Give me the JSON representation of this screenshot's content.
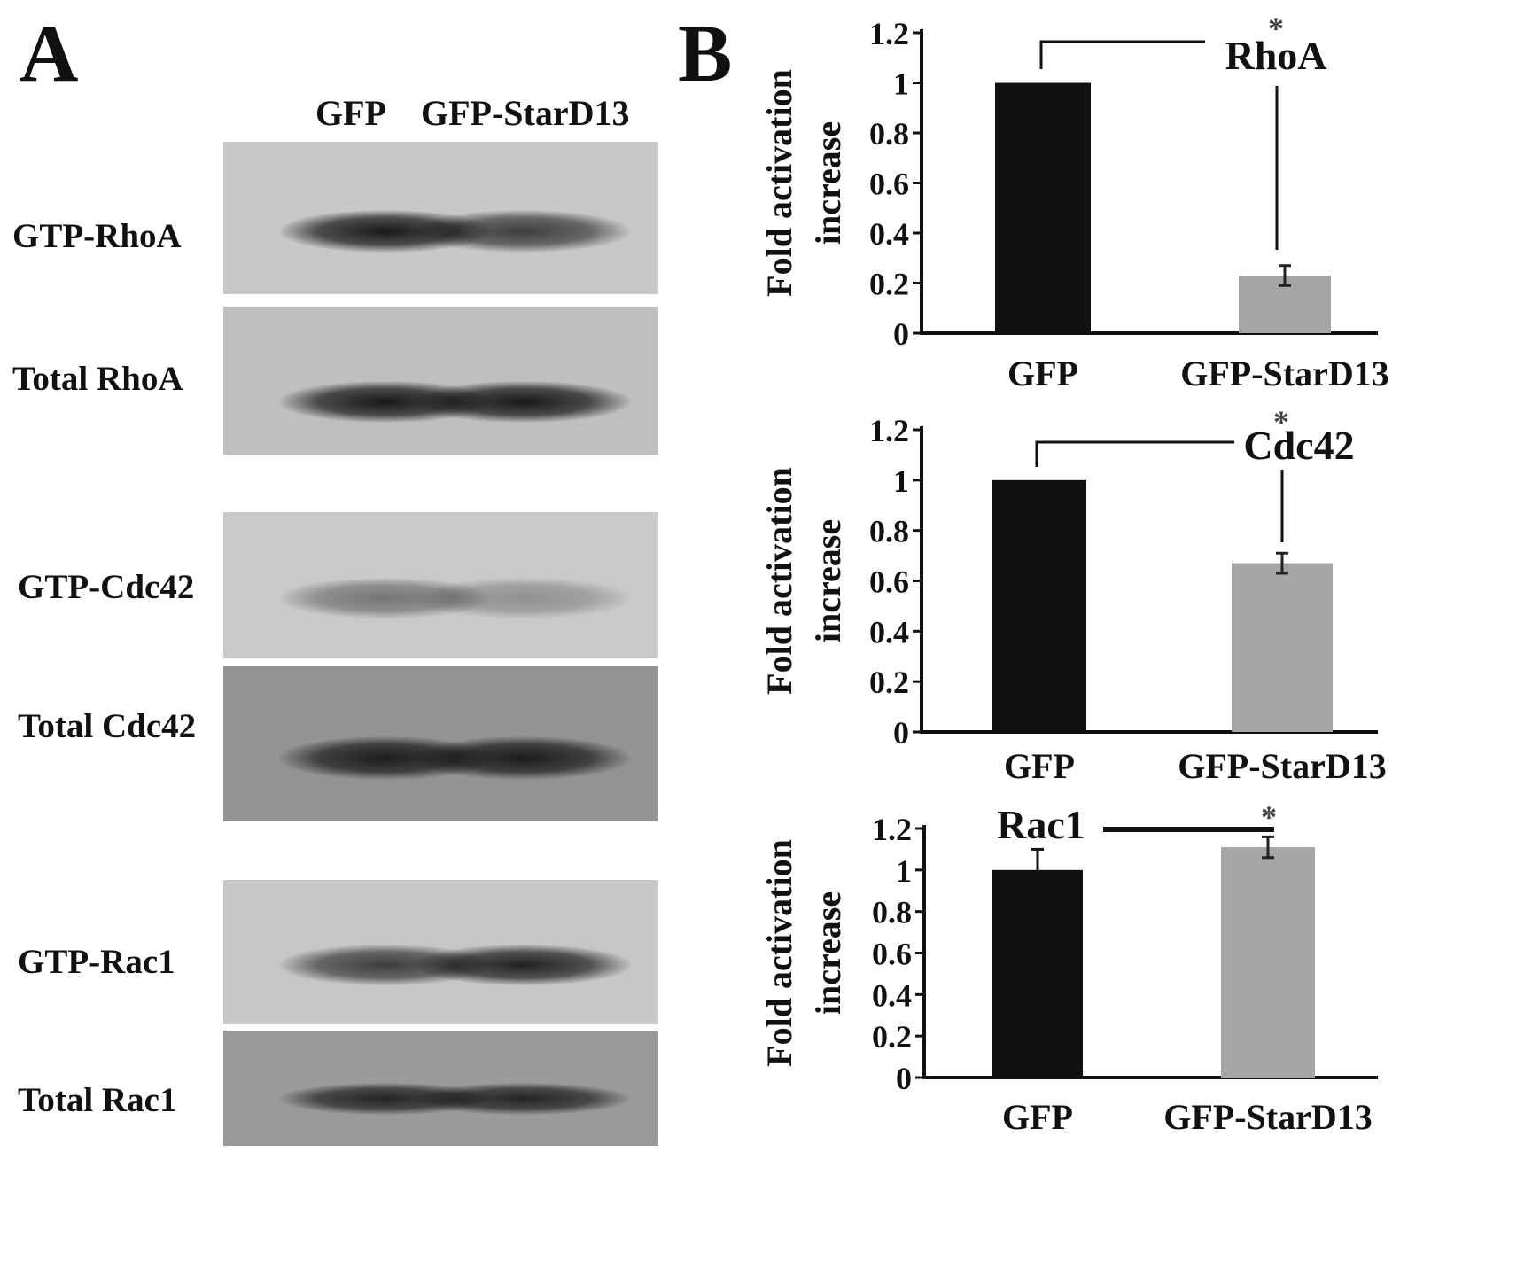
{
  "panel_a": {
    "letter": "A",
    "lanes": [
      "GFP",
      "GFP-StarD13"
    ],
    "rows": [
      {
        "label": "GTP-RhoA",
        "bg": "#c8c8c8",
        "bands": [
          0.95,
          0.75
        ]
      },
      {
        "label": "Total RhoA",
        "bg": "#bfbfbf",
        "bands": [
          0.95,
          0.95
        ]
      },
      {
        "label": "GTP-Cdc42",
        "bg": "#c9c9c9",
        "bands": [
          0.45,
          0.3
        ]
      },
      {
        "label": "Total Cdc42",
        "bg": "#939393",
        "bands": [
          0.9,
          0.9
        ]
      },
      {
        "label": "GTP-Rac1",
        "bg": "#c6c6c6",
        "bands": [
          0.75,
          0.9
        ]
      },
      {
        "label": "Total Rac1",
        "bg": "#9a9a9a",
        "bands": [
          0.85,
          0.85
        ]
      }
    ]
  },
  "panel_b": {
    "letter": "B"
  },
  "chart_data": [
    {
      "type": "bar",
      "name": "RhoA",
      "categories": [
        "GFP",
        "GFP-StarD13"
      ],
      "values": [
        1.0,
        0.23
      ],
      "errors": [
        0,
        0.04
      ],
      "colors": [
        "#111111",
        "#a6a6a6"
      ],
      "ylabel": "Fold activation increase",
      "ylim": [
        0,
        1.2
      ],
      "ticks": [
        "0",
        "0.2",
        "0.4",
        "0.6",
        "0.8",
        "1",
        "1.2"
      ],
      "significance": "*",
      "annotation": "RhoA"
    },
    {
      "type": "bar",
      "name": "Cdc42",
      "categories": [
        "GFP",
        "GFP-StarD13"
      ],
      "values": [
        1.0,
        0.67
      ],
      "errors": [
        0,
        0.04
      ],
      "colors": [
        "#111111",
        "#a6a6a6"
      ],
      "ylabel": "Fold activation increase",
      "ylim": [
        0,
        1.2
      ],
      "ticks": [
        "0",
        "0.2",
        "0.4",
        "0.6",
        "0.8",
        "1",
        "1.2"
      ],
      "significance": "*",
      "annotation": "Cdc42"
    },
    {
      "type": "bar",
      "name": "Rac1",
      "categories": [
        "GFP",
        "GFP-StarD13"
      ],
      "values": [
        1.0,
        1.11
      ],
      "errors": [
        0.1,
        0.05
      ],
      "colors": [
        "#111111",
        "#a6a6a6"
      ],
      "ylabel": "Fold activation increase",
      "ylim": [
        0,
        1.2
      ],
      "ticks": [
        "0",
        "0.2",
        "0.4",
        "0.6",
        "0.8",
        "1",
        "1.2"
      ],
      "significance": "*",
      "annotation": "Rac1"
    }
  ]
}
